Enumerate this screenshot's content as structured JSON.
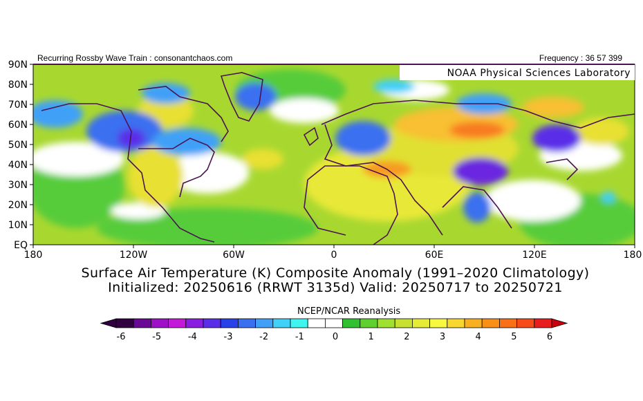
{
  "header": {
    "left": "Recurring Rossby Wave Train : consonantchaos.com",
    "right": "Frequency : 36 57 399",
    "lab": "NOAA Physical Sciences Laboratory"
  },
  "map": {
    "lat_labels": [
      "90N",
      "80N",
      "70N",
      "60N",
      "50N",
      "40N",
      "30N",
      "20N",
      "10N",
      "EQ"
    ],
    "lon_labels": [
      "180",
      "120W",
      "60W",
      "0",
      "60E",
      "120E",
      "180"
    ],
    "colors": {
      "land_outline": "#4b1352",
      "base_positive": "#a8d830",
      "neutral": "#ffffff"
    }
  },
  "title": {
    "line1": "Surface Air Temperature (K) Composite Anomaly (1991–2020 Climatology)",
    "line2": "Initialized: 20250616 (RRWT 3135d) Valid: 20250717 to 20250721"
  },
  "colorbar": {
    "title": "NCEP/NCAR Reanalysis",
    "labels": [
      "-6",
      "-5",
      "-4",
      "-3",
      "-2",
      "-1",
      "0",
      "1",
      "2",
      "3",
      "4",
      "5",
      "6"
    ],
    "colors": [
      "#300040",
      "#6a0896",
      "#9e10c8",
      "#c21ad8",
      "#8a1ee0",
      "#5a2ee8",
      "#2a40e8",
      "#3a70f0",
      "#40a0f8",
      "#40d0f8",
      "#40f4f0",
      "#ffffff",
      "#ffffff",
      "#30c030",
      "#60d030",
      "#a0e030",
      "#c8e030",
      "#e4ec38",
      "#f8f840",
      "#f8d830",
      "#f8b020",
      "#f89018",
      "#f87018",
      "#f84c18",
      "#e81e1e"
    ],
    "arrow_left_color": "#300040",
    "arrow_right_color": "#c80010"
  }
}
